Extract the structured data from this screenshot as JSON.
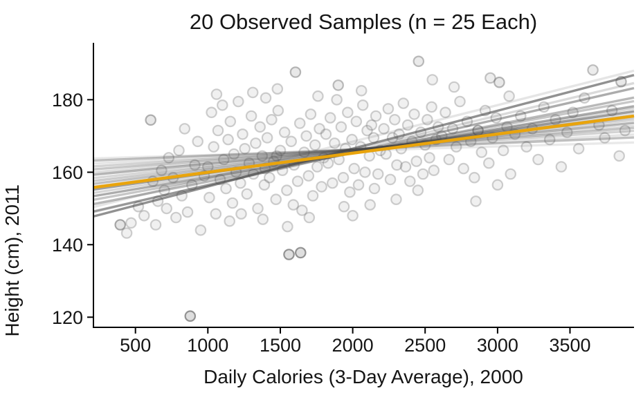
{
  "chart_data": {
    "type": "scatter",
    "title": "20 Observed Samples (n = 25 Each)",
    "xlabel": "Daily Calories (3-Day Average), 2000",
    "ylabel": "Height (cm), 2011",
    "xlim": [
      210,
      3942
    ],
    "ylim": [
      117.2,
      195.7
    ],
    "xticks": [
      500,
      1000,
      1500,
      2000,
      2500,
      3000,
      3500
    ],
    "yticks": [
      120,
      140,
      160,
      180
    ],
    "grid": false,
    "legend": false,
    "axis_color": "#000000",
    "scatter_style": {
      "radius": 7.2,
      "fill": "#8c8c8c",
      "stroke": "#5a5a5a",
      "fill_opacity": 0.13,
      "stroke_opacity": 0.28,
      "stroke_width": 2.2
    },
    "sample_line_style": {
      "color": "#474747",
      "width": 3.4
    },
    "true_line": {
      "color": "#E9A40C",
      "width": 4.4,
      "y_at_xmin": 155.8,
      "y_at_xmax": 175.5
    },
    "sample_lines": [
      [
        147.8,
        186.8,
        0.6
      ],
      [
        149.2,
        183.2,
        0.45
      ],
      [
        150.4,
        188.0,
        0.14
      ],
      [
        151.2,
        180.6,
        0.38
      ],
      [
        152.4,
        179.6,
        0.3
      ],
      [
        153.4,
        178.2,
        0.45
      ],
      [
        154.3,
        177.6,
        0.22
      ],
      [
        155.2,
        176.8,
        0.52
      ],
      [
        156.0,
        176.2,
        0.18
      ],
      [
        156.8,
        175.6,
        0.34
      ],
      [
        157.6,
        175.0,
        0.28
      ],
      [
        158.4,
        174.4,
        0.22
      ],
      [
        159.3,
        173.6,
        0.4
      ],
      [
        160.0,
        172.8,
        0.18
      ],
      [
        160.8,
        172.2,
        0.3
      ],
      [
        161.6,
        171.4,
        0.24
      ],
      [
        162.4,
        170.4,
        0.14
      ],
      [
        163.2,
        169.6,
        0.34
      ],
      [
        163.8,
        168.2,
        0.12
      ],
      [
        149.0,
        184.6,
        0.2
      ]
    ],
    "points": [
      [
        395,
        145.5,
        1.8
      ],
      [
        440,
        143.2
      ],
      [
        470,
        146.0
      ],
      [
        520,
        150.5
      ],
      [
        560,
        148.0
      ],
      [
        605,
        174.4,
        1.6
      ],
      [
        620,
        157.5
      ],
      [
        640,
        145.5
      ],
      [
        655,
        152.0
      ],
      [
        680,
        160.5
      ],
      [
        700,
        155.0
      ],
      [
        715,
        150.0
      ],
      [
        730,
        164.0
      ],
      [
        760,
        158.5
      ],
      [
        780,
        147.5
      ],
      [
        800,
        166.0
      ],
      [
        820,
        153.5
      ],
      [
        840,
        172.0
      ],
      [
        860,
        149.0
      ],
      [
        878,
        120.3,
        2.2
      ],
      [
        890,
        156.5
      ],
      [
        910,
        162.0
      ],
      [
        930,
        168.5
      ],
      [
        950,
        144.0
      ],
      [
        975,
        159.0
      ],
      [
        1000,
        161.5
      ],
      [
        1010,
        153.0
      ],
      [
        1025,
        176.5
      ],
      [
        1040,
        167.0
      ],
      [
        1055,
        148.5
      ],
      [
        1060,
        181.5
      ],
      [
        1070,
        171.5
      ],
      [
        1085,
        158.0
      ],
      [
        1100,
        178.5
      ],
      [
        1110,
        163.5
      ],
      [
        1125,
        155.5
      ],
      [
        1140,
        169.0
      ],
      [
        1150,
        146.5
      ],
      [
        1155,
        174.0
      ],
      [
        1170,
        151.5
      ],
      [
        1180,
        165.0
      ],
      [
        1195,
        160.0
      ],
      [
        1210,
        179.5
      ],
      [
        1225,
        157.0
      ],
      [
        1230,
        148.5
      ],
      [
        1240,
        170.5
      ],
      [
        1255,
        166.5
      ],
      [
        1270,
        154.0
      ],
      [
        1285,
        162.5
      ],
      [
        1300,
        175.5
      ],
      [
        1310,
        182.0
      ],
      [
        1315,
        159.5
      ],
      [
        1330,
        168.0
      ],
      [
        1345,
        150.0
      ],
      [
        1360,
        172.5
      ],
      [
        1375,
        164.5
      ],
      [
        1380,
        147.0
      ],
      [
        1390,
        156.5
      ],
      [
        1395,
        161.0
      ],
      [
        1400,
        180.5
      ],
      [
        1410,
        169.5
      ],
      [
        1425,
        158.5
      ],
      [
        1440,
        174.5
      ],
      [
        1455,
        163.0
      ],
      [
        1470,
        152.5
      ],
      [
        1475,
        164.5
      ],
      [
        1480,
        183.0
      ],
      [
        1485,
        177.0
      ],
      [
        1500,
        166.0
      ],
      [
        1515,
        160.5
      ],
      [
        1530,
        171.0
      ],
      [
        1545,
        155.0
      ],
      [
        1550,
        145.0
      ],
      [
        1560,
        137.3,
        2.2
      ],
      [
        1575,
        168.5
      ],
      [
        1590,
        151.0
      ],
      [
        1595,
        162.0
      ],
      [
        1605,
        187.6,
        1.5
      ],
      [
        1620,
        157.5
      ],
      [
        1635,
        173.5
      ],
      [
        1640,
        137.8,
        2.2
      ],
      [
        1650,
        149.5
      ],
      [
        1665,
        165.5
      ],
      [
        1680,
        170.0
      ],
      [
        1695,
        159.0
      ],
      [
        1700,
        147.5
      ],
      [
        1710,
        176.0
      ],
      [
        1725,
        153.5
      ],
      [
        1740,
        167.5
      ],
      [
        1755,
        161.5
      ],
      [
        1760,
        181.0
      ],
      [
        1770,
        172.0
      ],
      [
        1785,
        156.0
      ],
      [
        1800,
        164.0
      ],
      [
        1815,
        170.5
      ],
      [
        1830,
        162.5
      ],
      [
        1845,
        175.0
      ],
      [
        1860,
        157.0
      ],
      [
        1875,
        168.0
      ],
      [
        1890,
        180.0
      ],
      [
        1900,
        184.0,
        1.4
      ],
      [
        1905,
        163.5
      ],
      [
        1920,
        172.5
      ],
      [
        1935,
        158.5
      ],
      [
        1940,
        150.5
      ],
      [
        1950,
        166.5
      ],
      [
        1965,
        176.5
      ],
      [
        1980,
        154.5
      ],
      [
        1995,
        169.0
      ],
      [
        2000,
        148.0
      ],
      [
        2010,
        161.0
      ],
      [
        2025,
        174.0
      ],
      [
        2040,
        156.5
      ],
      [
        2055,
        167.0
      ],
      [
        2060,
        182.5
      ],
      [
        2070,
        178.5
      ],
      [
        2085,
        160.0
      ],
      [
        2100,
        171.5
      ],
      [
        2115,
        164.5
      ],
      [
        2120,
        151.0
      ],
      [
        2130,
        173.0
      ],
      [
        2145,
        169.5
      ],
      [
        2150,
        155.5
      ],
      [
        2160,
        175.5
      ],
      [
        2175,
        159.5
      ],
      [
        2190,
        166.0
      ],
      [
        2215,
        172.0
      ],
      [
        2230,
        165.0
      ],
      [
        2245,
        177.5
      ],
      [
        2260,
        158.0
      ],
      [
        2275,
        169.5
      ],
      [
        2290,
        174.5
      ],
      [
        2300,
        152.5
      ],
      [
        2305,
        162.0
      ],
      [
        2320,
        170.5
      ],
      [
        2335,
        166.5
      ],
      [
        2350,
        179.0
      ],
      [
        2365,
        161.5
      ],
      [
        2380,
        173.0
      ],
      [
        2395,
        157.5
      ],
      [
        2410,
        168.5
      ],
      [
        2425,
        176.0
      ],
      [
        2440,
        163.0
      ],
      [
        2450,
        155.0
      ],
      [
        2455,
        190.6,
        1.4
      ],
      [
        2470,
        171.0
      ],
      [
        2485,
        159.5
      ],
      [
        2500,
        167.5
      ],
      [
        2515,
        174.5
      ],
      [
        2530,
        164.0
      ],
      [
        2545,
        178.0
      ],
      [
        2550,
        185.5
      ],
      [
        2560,
        160.5
      ],
      [
        2575,
        169.0
      ],
      [
        2590,
        172.5
      ],
      [
        2615,
        170.0
      ],
      [
        2640,
        176.5
      ],
      [
        2665,
        163.5
      ],
      [
        2690,
        172.0
      ],
      [
        2700,
        183.5
      ],
      [
        2715,
        167.0
      ],
      [
        2740,
        179.5
      ],
      [
        2765,
        161.0
      ],
      [
        2790,
        174.0
      ],
      [
        2815,
        168.5
      ],
      [
        2840,
        158.5
      ],
      [
        2850,
        152.0
      ],
      [
        2865,
        171.5,
        1.8
      ],
      [
        2890,
        165.5
      ],
      [
        2915,
        177.0
      ],
      [
        2940,
        162.5
      ],
      [
        2950,
        186.0,
        1.2
      ],
      [
        2965,
        169.5
      ],
      [
        2990,
        175.0
      ],
      [
        3000,
        156.5
      ],
      [
        3012,
        184.8,
        1.5
      ],
      [
        3040,
        166.0
      ],
      [
        3065,
        172.5
      ],
      [
        3080,
        181.0
      ],
      [
        3090,
        159.5
      ],
      [
        3120,
        170.5
      ],
      [
        3160,
        175.5
      ],
      [
        3200,
        167.0
      ],
      [
        3240,
        172.0
      ],
      [
        3280,
        163.5
      ],
      [
        3320,
        178.0
      ],
      [
        3360,
        169.0
      ],
      [
        3400,
        174.5
      ],
      [
        3440,
        161.5
      ],
      [
        3480,
        171.0
      ],
      [
        3520,
        176.5
      ],
      [
        3560,
        166.5
      ],
      [
        3600,
        180.5
      ],
      [
        3658,
        188.2,
        1.3
      ],
      [
        3700,
        173.0
      ],
      [
        3740,
        169.5
      ],
      [
        3790,
        177.0
      ],
      [
        3840,
        164.5
      ],
      [
        3853,
        185.0,
        1.5
      ],
      [
        3880,
        171.5
      ]
    ]
  }
}
